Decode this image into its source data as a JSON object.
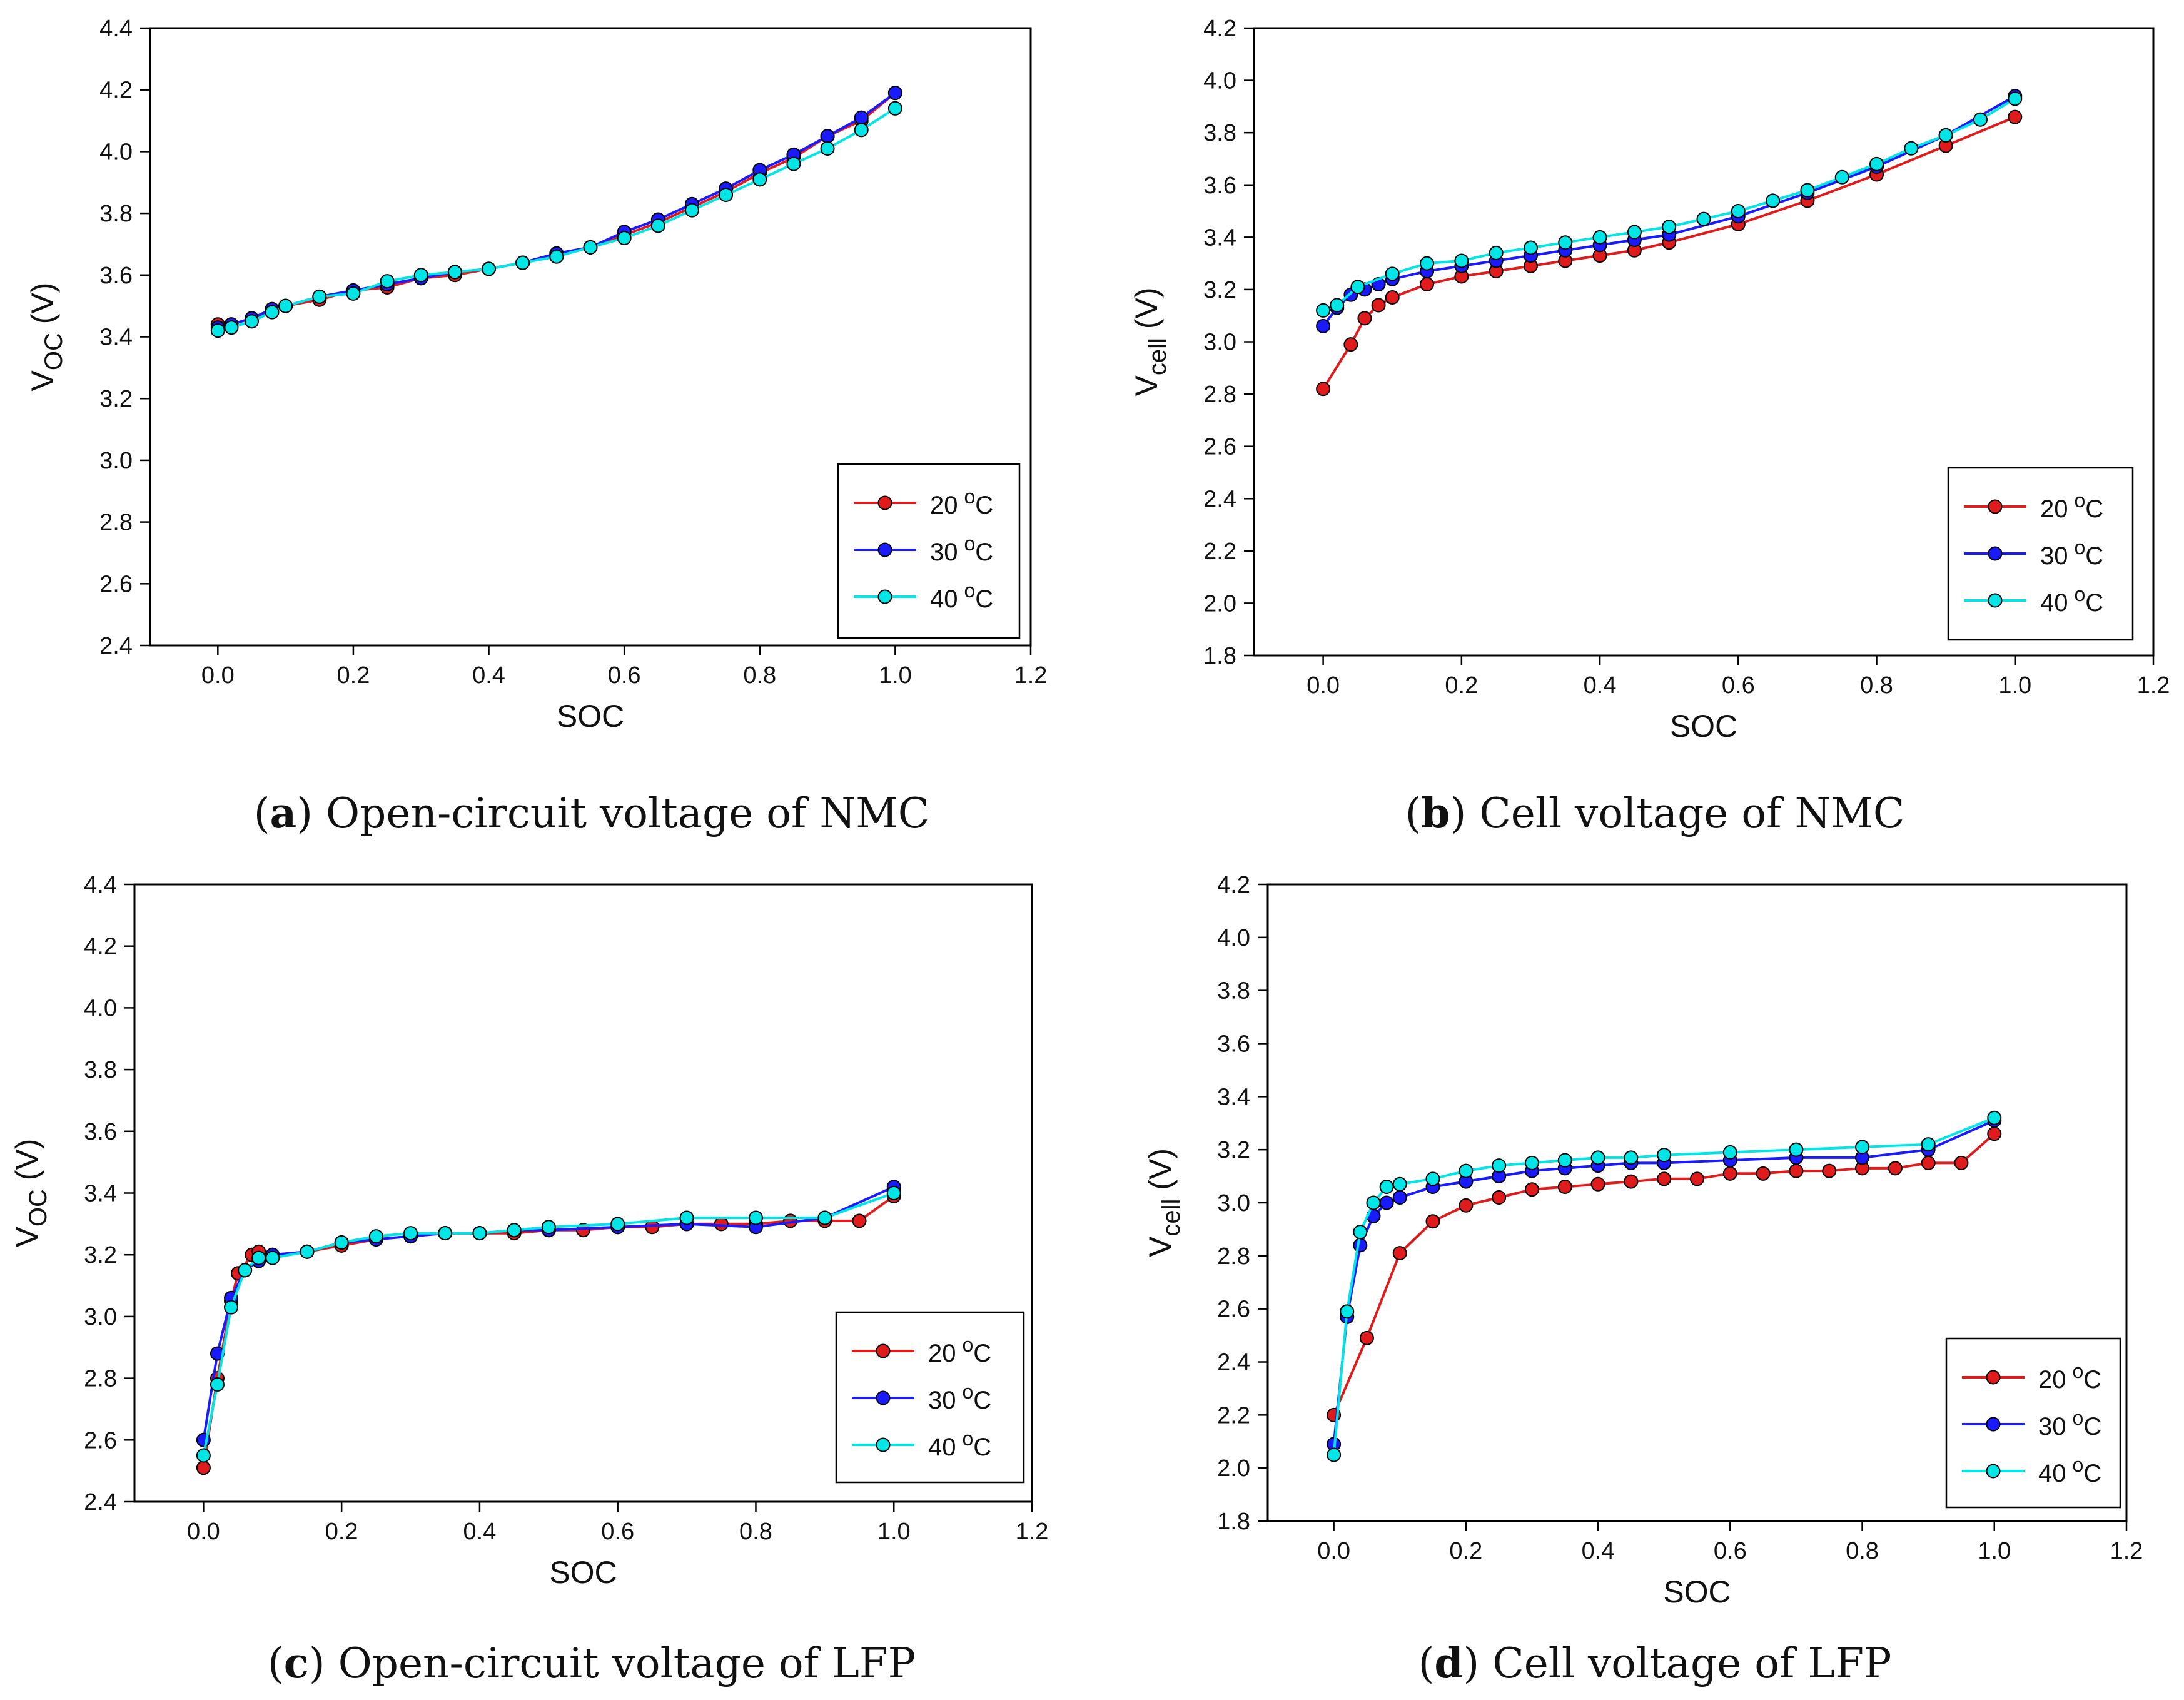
{
  "colors": {
    "s20": "#e01b1b",
    "s30": "#1a1aff",
    "s40": "#00e6e6"
  },
  "captions": [
    {
      "letter": "a",
      "text": " Open-circuit voltage of NMC"
    },
    {
      "letter": "b",
      "text": " Cell voltage of NMC"
    },
    {
      "letter": "c",
      "text": " Open-circuit voltage of LFP"
    },
    {
      "letter": "d",
      "text": " Cell voltage of LFP"
    }
  ],
  "chart_data": [
    {
      "type": "line",
      "title": "",
      "xlabel": "SOC",
      "ylabel": {
        "main": "V",
        "sub": "OC",
        "unit": " (V)"
      },
      "xlim": [
        -0.1,
        1.2
      ],
      "ylim": [
        2.4,
        4.4
      ],
      "xticks": [
        "0.0",
        "0.2",
        "0.4",
        "0.6",
        "0.8",
        "1.0",
        "1.2"
      ],
      "yticks": [
        "2.4",
        "2.6",
        "2.8",
        "3.0",
        "3.2",
        "3.4",
        "3.6",
        "3.8",
        "4.0",
        "4.2",
        "4.4"
      ],
      "legend": {
        "position": "lower-right",
        "unit": "C",
        "sup": "o"
      },
      "series": [
        {
          "name": "20",
          "x": [
            0,
            0.02,
            0.05,
            0.08,
            0.1,
            0.15,
            0.2,
            0.25,
            0.3,
            0.35,
            0.4,
            0.45,
            0.5,
            0.55,
            0.6,
            0.65,
            0.7,
            0.75,
            0.8,
            0.85,
            0.9,
            0.95,
            1.0
          ],
          "y": [
            3.44,
            3.44,
            3.46,
            3.48,
            3.5,
            3.52,
            3.55,
            3.56,
            3.59,
            3.6,
            3.62,
            3.64,
            3.67,
            3.69,
            3.73,
            3.77,
            3.82,
            3.87,
            3.93,
            3.98,
            4.05,
            4.1,
            4.19
          ]
        },
        {
          "name": "30",
          "x": [
            0,
            0.02,
            0.05,
            0.08,
            0.1,
            0.15,
            0.2,
            0.25,
            0.3,
            0.35,
            0.4,
            0.45,
            0.5,
            0.55,
            0.6,
            0.65,
            0.7,
            0.75,
            0.8,
            0.85,
            0.9,
            0.95,
            1.0
          ],
          "y": [
            3.43,
            3.44,
            3.46,
            3.49,
            3.5,
            3.53,
            3.55,
            3.57,
            3.59,
            3.61,
            3.62,
            3.64,
            3.67,
            3.69,
            3.74,
            3.78,
            3.83,
            3.88,
            3.94,
            3.99,
            4.05,
            4.11,
            4.19
          ]
        },
        {
          "name": "40",
          "x": [
            0,
            0.02,
            0.05,
            0.08,
            0.1,
            0.15,
            0.2,
            0.25,
            0.3,
            0.35,
            0.4,
            0.45,
            0.5,
            0.55,
            0.6,
            0.65,
            0.7,
            0.75,
            0.8,
            0.85,
            0.9,
            0.95,
            1.0
          ],
          "y": [
            3.42,
            3.43,
            3.45,
            3.48,
            3.5,
            3.53,
            3.54,
            3.58,
            3.6,
            3.61,
            3.62,
            3.64,
            3.66,
            3.69,
            3.72,
            3.76,
            3.81,
            3.86,
            3.91,
            3.96,
            4.01,
            4.07,
            4.14
          ]
        }
      ]
    },
    {
      "type": "line",
      "title": "",
      "xlabel": "SOC",
      "ylabel": {
        "main": "V",
        "sub": "cell",
        "unit": " (V)"
      },
      "xlim": [
        -0.1,
        1.2
      ],
      "ylim": [
        1.8,
        4.2
      ],
      "xticks": [
        "0.0",
        "0.2",
        "0.4",
        "0.6",
        "0.8",
        "1.0",
        "1.2"
      ],
      "yticks": [
        "1.8",
        "2.0",
        "2.2",
        "2.4",
        "2.6",
        "2.8",
        "3.0",
        "3.2",
        "3.4",
        "3.6",
        "3.8",
        "4.0",
        "4.2"
      ],
      "legend": {
        "position": "lower-right",
        "unit": "C",
        "sup": "o"
      },
      "series": [
        {
          "name": "20",
          "x": [
            0,
            0.04,
            0.06,
            0.08,
            0.1,
            0.15,
            0.2,
            0.25,
            0.3,
            0.35,
            0.4,
            0.45,
            0.5,
            0.6,
            0.7,
            0.8,
            0.9,
            1.0
          ],
          "y": [
            2.82,
            2.99,
            3.09,
            3.14,
            3.17,
            3.22,
            3.25,
            3.27,
            3.29,
            3.31,
            3.33,
            3.35,
            3.38,
            3.45,
            3.54,
            3.64,
            3.75,
            3.86
          ]
        },
        {
          "name": "30",
          "x": [
            0,
            0.02,
            0.04,
            0.06,
            0.08,
            0.1,
            0.15,
            0.2,
            0.25,
            0.3,
            0.35,
            0.4,
            0.45,
            0.5,
            0.6,
            0.7,
            0.8,
            0.9,
            1.0
          ],
          "y": [
            3.06,
            3.13,
            3.18,
            3.2,
            3.22,
            3.24,
            3.27,
            3.29,
            3.31,
            3.33,
            3.35,
            3.37,
            3.39,
            3.41,
            3.48,
            3.57,
            3.67,
            3.79,
            3.94
          ]
        },
        {
          "name": "40",
          "x": [
            0,
            0.02,
            0.05,
            0.1,
            0.15,
            0.2,
            0.25,
            0.3,
            0.35,
            0.4,
            0.45,
            0.5,
            0.55,
            0.6,
            0.65,
            0.7,
            0.75,
            0.8,
            0.85,
            0.9,
            0.95,
            1.0
          ],
          "y": [
            3.12,
            3.14,
            3.21,
            3.26,
            3.3,
            3.31,
            3.34,
            3.36,
            3.38,
            3.4,
            3.42,
            3.44,
            3.47,
            3.5,
            3.54,
            3.58,
            3.63,
            3.68,
            3.74,
            3.79,
            3.85,
            3.93
          ]
        }
      ]
    },
    {
      "type": "line",
      "title": "",
      "xlabel": "SOC",
      "ylabel": {
        "main": "V",
        "sub": "OC",
        "unit": " (V)"
      },
      "xlim": [
        -0.1,
        1.2
      ],
      "ylim": [
        2.4,
        4.4
      ],
      "xticks": [
        "0.0",
        "0.2",
        "0.4",
        "0.6",
        "0.8",
        "1.0",
        "1.2"
      ],
      "yticks": [
        "2.4",
        "2.6",
        "2.8",
        "3.0",
        "3.2",
        "3.4",
        "3.6",
        "3.8",
        "4.0",
        "4.2",
        "4.4"
      ],
      "legend": {
        "position": "lower-right",
        "unit": "C",
        "sup": "o"
      },
      "series": [
        {
          "name": "20",
          "x": [
            0,
            0.02,
            0.04,
            0.05,
            0.07,
            0.08,
            0.1,
            0.15,
            0.2,
            0.25,
            0.3,
            0.35,
            0.4,
            0.45,
            0.5,
            0.55,
            0.6,
            0.65,
            0.7,
            0.75,
            0.8,
            0.85,
            0.9,
            0.95,
            1.0
          ],
          "y": [
            2.51,
            2.8,
            3.05,
            3.14,
            3.2,
            3.21,
            3.2,
            3.21,
            3.23,
            3.25,
            3.26,
            3.27,
            3.27,
            3.27,
            3.28,
            3.28,
            3.29,
            3.29,
            3.3,
            3.3,
            3.3,
            3.31,
            3.31,
            3.31,
            3.39
          ]
        },
        {
          "name": "30",
          "x": [
            0,
            0.02,
            0.04,
            0.06,
            0.08,
            0.1,
            0.15,
            0.2,
            0.25,
            0.3,
            0.35,
            0.4,
            0.45,
            0.5,
            0.6,
            0.7,
            0.8,
            0.9,
            1.0
          ],
          "y": [
            2.6,
            2.88,
            3.06,
            3.15,
            3.18,
            3.2,
            3.21,
            3.24,
            3.25,
            3.26,
            3.27,
            3.27,
            3.28,
            3.28,
            3.29,
            3.3,
            3.29,
            3.32,
            3.42
          ]
        },
        {
          "name": "40",
          "x": [
            0,
            0.02,
            0.04,
            0.06,
            0.08,
            0.1,
            0.15,
            0.2,
            0.25,
            0.3,
            0.35,
            0.4,
            0.45,
            0.5,
            0.6,
            0.7,
            0.8,
            0.9,
            1.0
          ],
          "y": [
            2.55,
            2.78,
            3.03,
            3.15,
            3.19,
            3.19,
            3.21,
            3.24,
            3.26,
            3.27,
            3.27,
            3.27,
            3.28,
            3.29,
            3.3,
            3.32,
            3.32,
            3.32,
            3.4
          ]
        }
      ]
    },
    {
      "type": "line",
      "title": "",
      "xlabel": "SOC",
      "ylabel": {
        "main": "V",
        "sub": "cell",
        "unit": " (V)"
      },
      "xlim": [
        -0.1,
        1.2
      ],
      "ylim": [
        1.8,
        4.2
      ],
      "xticks": [
        "0.0",
        "0.2",
        "0.4",
        "0.6",
        "0.8",
        "1.0",
        "1.2"
      ],
      "yticks": [
        "1.8",
        "2.0",
        "2.2",
        "2.4",
        "2.6",
        "2.8",
        "3.0",
        "3.2",
        "3.4",
        "3.6",
        "3.8",
        "4.0",
        "4.2"
      ],
      "legend": {
        "position": "lower-right",
        "unit": "C",
        "sup": "o"
      },
      "series": [
        {
          "name": "20",
          "x": [
            0,
            0.05,
            0.1,
            0.15,
            0.2,
            0.25,
            0.3,
            0.35,
            0.4,
            0.45,
            0.5,
            0.55,
            0.6,
            0.65,
            0.7,
            0.75,
            0.8,
            0.85,
            0.9,
            0.95,
            1.0
          ],
          "y": [
            2.2,
            2.49,
            2.81,
            2.93,
            2.99,
            3.02,
            3.05,
            3.06,
            3.07,
            3.08,
            3.09,
            3.09,
            3.11,
            3.11,
            3.12,
            3.12,
            3.13,
            3.13,
            3.15,
            3.15,
            3.26
          ]
        },
        {
          "name": "30",
          "x": [
            0,
            0.02,
            0.04,
            0.06,
            0.08,
            0.1,
            0.15,
            0.2,
            0.25,
            0.3,
            0.35,
            0.4,
            0.45,
            0.5,
            0.6,
            0.7,
            0.8,
            0.9,
            1.0
          ],
          "y": [
            2.09,
            2.57,
            2.84,
            2.95,
            3.0,
            3.02,
            3.06,
            3.08,
            3.1,
            3.12,
            3.13,
            3.14,
            3.15,
            3.15,
            3.16,
            3.17,
            3.17,
            3.2,
            3.31
          ]
        },
        {
          "name": "40",
          "x": [
            0,
            0.02,
            0.04,
            0.06,
            0.08,
            0.1,
            0.15,
            0.2,
            0.25,
            0.3,
            0.35,
            0.4,
            0.45,
            0.5,
            0.6,
            0.7,
            0.8,
            0.9,
            1.0
          ],
          "y": [
            2.05,
            2.59,
            2.89,
            3.0,
            3.06,
            3.07,
            3.09,
            3.12,
            3.14,
            3.15,
            3.16,
            3.17,
            3.17,
            3.18,
            3.19,
            3.2,
            3.21,
            3.22,
            3.32
          ]
        }
      ]
    }
  ]
}
